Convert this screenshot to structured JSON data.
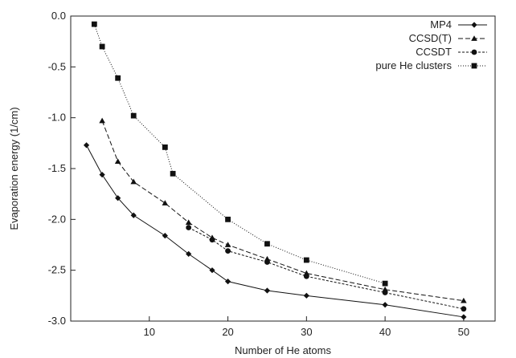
{
  "chart_data": {
    "type": "line",
    "xlabel": "Number of He atoms",
    "ylabel": "Evaporation energy (1/cm)",
    "xlim": [
      0,
      54
    ],
    "ylim": [
      -3.0,
      0.0
    ],
    "x_ticks": [
      10,
      20,
      30,
      40,
      50
    ],
    "x_tick_labels": [
      "10",
      "20",
      "30",
      "40",
      "50"
    ],
    "y_ticks": [
      0.0,
      -0.5,
      -1.0,
      -1.5,
      -2.0,
      -2.5,
      -3.0
    ],
    "y_tick_labels": [
      "0.0",
      "-0.5",
      "-1.0",
      "-1.5",
      "-2.0",
      "-2.5",
      "-3.0"
    ],
    "grid": false,
    "legend_position": "top-right",
    "series": [
      {
        "name": "MP4",
        "marker": "diamond",
        "dash": "solid",
        "color": "#111111",
        "points": [
          [
            2,
            -1.27
          ],
          [
            4,
            -1.56
          ],
          [
            6,
            -1.79
          ],
          [
            8,
            -1.96
          ],
          [
            12,
            -2.16
          ],
          [
            15,
            -2.34
          ],
          [
            18,
            -2.5
          ],
          [
            20,
            -2.61
          ],
          [
            25,
            -2.7
          ],
          [
            30,
            -2.75
          ],
          [
            40,
            -2.84
          ],
          [
            50,
            -2.96
          ]
        ]
      },
      {
        "name": "CCSD(T)",
        "marker": "triangle",
        "dash": "dashed",
        "color": "#111111",
        "points": [
          [
            4,
            -1.03
          ],
          [
            6,
            -1.43
          ],
          [
            8,
            -1.63
          ],
          [
            12,
            -1.84
          ],
          [
            15,
            -2.03
          ],
          [
            18,
            -2.18
          ],
          [
            20,
            -2.25
          ],
          [
            25,
            -2.39
          ],
          [
            30,
            -2.53
          ],
          [
            40,
            -2.69
          ],
          [
            50,
            -2.8
          ]
        ]
      },
      {
        "name": "CCSDT",
        "marker": "circle",
        "dash": "fine-dashed",
        "color": "#111111",
        "points": [
          [
            15,
            -2.08
          ],
          [
            18,
            -2.2
          ],
          [
            20,
            -2.31
          ],
          [
            25,
            -2.42
          ],
          [
            30,
            -2.56
          ],
          [
            40,
            -2.72
          ],
          [
            50,
            -2.88
          ]
        ]
      },
      {
        "name": "pure He clusters",
        "marker": "square",
        "dash": "dotted",
        "color": "#111111",
        "points": [
          [
            3,
            -0.08
          ],
          [
            4,
            -0.3
          ],
          [
            6,
            -0.61
          ],
          [
            8,
            -0.98
          ],
          [
            12,
            -1.29
          ],
          [
            13,
            -1.55
          ],
          [
            20,
            -2.0
          ],
          [
            25,
            -2.24
          ],
          [
            30,
            -2.4
          ],
          [
            40,
            -2.63
          ]
        ]
      }
    ]
  }
}
